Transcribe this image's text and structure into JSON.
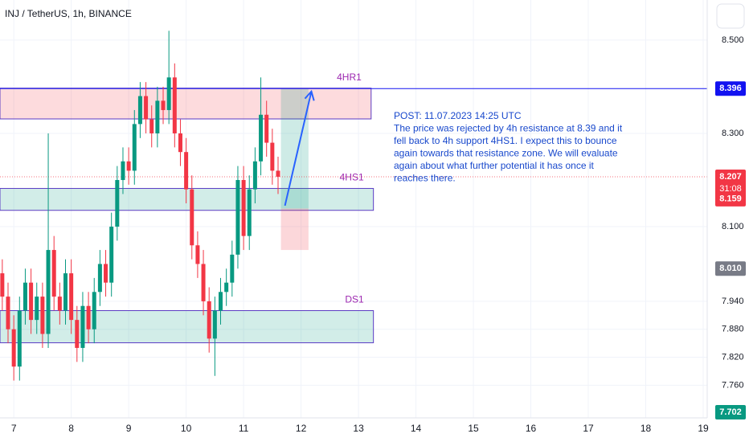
{
  "chart_data": {
    "type": "candlestick",
    "title": "INJ / TetherUS, 1h, BINANCE",
    "x": [
      6.8,
      6.9,
      7.0,
      7.1,
      7.2,
      7.3,
      7.4,
      7.5,
      7.6,
      7.7,
      7.8,
      7.9,
      8.0,
      8.1,
      8.2,
      8.3,
      8.4,
      8.5,
      8.6,
      8.7,
      8.8,
      8.9,
      9.0,
      9.1,
      9.2,
      9.3,
      9.4,
      9.5,
      9.6,
      9.7,
      9.8,
      9.9,
      10.0,
      10.1,
      10.2,
      10.3,
      10.4,
      10.5,
      10.6,
      10.7,
      10.8,
      10.9,
      11.0,
      11.1,
      11.2,
      11.3,
      11.4,
      11.5,
      11.6
    ],
    "open": [
      8.0,
      7.95,
      7.88,
      7.8,
      7.92,
      7.98,
      7.9,
      7.95,
      7.87,
      8.05,
      7.95,
      7.92,
      8.0,
      7.9,
      7.84,
      7.93,
      7.88,
      7.96,
      8.02,
      7.98,
      8.1,
      8.2,
      8.24,
      8.22,
      8.32,
      8.38,
      8.33,
      8.3,
      8.37,
      8.35,
      8.42,
      8.3,
      8.26,
      8.18,
      8.06,
      8.02,
      7.94,
      7.86,
      7.92,
      7.96,
      7.98,
      8.04,
      8.2,
      8.08,
      8.18,
      8.24,
      8.34,
      8.28,
      8.22
    ],
    "high": [
      8.03,
      7.98,
      7.91,
      7.95,
      8.01,
      8.01,
      7.98,
      7.98,
      8.3,
      8.08,
      7.98,
      8.03,
      8.03,
      7.93,
      7.96,
      7.96,
      7.99,
      8.05,
      8.05,
      8.13,
      8.23,
      8.27,
      8.27,
      8.35,
      8.41,
      8.41,
      8.36,
      8.4,
      8.4,
      8.52,
      8.45,
      8.33,
      8.29,
      8.21,
      8.09,
      8.05,
      7.97,
      7.95,
      7.99,
      8.01,
      8.07,
      8.23,
      8.23,
      8.21,
      8.27,
      8.42,
      8.37,
      8.31,
      8.25
    ],
    "low": [
      7.92,
      7.85,
      7.77,
      7.77,
      7.89,
      7.87,
      7.87,
      7.84,
      7.84,
      7.92,
      7.89,
      7.89,
      7.87,
      7.81,
      7.81,
      7.85,
      7.85,
      7.93,
      7.95,
      7.95,
      8.07,
      8.17,
      8.19,
      8.19,
      8.29,
      8.3,
      8.27,
      8.27,
      8.32,
      8.32,
      8.27,
      8.23,
      8.15,
      8.03,
      7.99,
      7.91,
      7.83,
      7.78,
      7.89,
      7.93,
      7.95,
      8.01,
      8.05,
      8.05,
      8.15,
      8.21,
      8.25,
      8.19,
      8.17
    ],
    "close": [
      7.95,
      7.88,
      7.8,
      7.92,
      7.98,
      7.9,
      7.95,
      7.87,
      8.05,
      7.95,
      7.92,
      8.0,
      7.9,
      7.84,
      7.93,
      7.88,
      7.96,
      8.02,
      7.98,
      8.1,
      8.2,
      8.24,
      8.22,
      8.32,
      8.38,
      8.33,
      8.3,
      8.37,
      8.35,
      8.42,
      8.3,
      8.26,
      8.18,
      8.06,
      8.02,
      7.94,
      7.86,
      7.92,
      7.96,
      7.98,
      8.04,
      8.2,
      8.08,
      8.18,
      8.24,
      8.34,
      8.28,
      8.22,
      8.207
    ],
    "up_color": "#089981",
    "down_color": "#f23645",
    "xlim": [
      6.76,
      19.07
    ],
    "xticks": [
      7,
      8,
      9,
      10,
      11,
      12,
      13,
      14,
      15,
      16,
      17,
      18,
      19
    ],
    "ylim": [
      7.69,
      8.586
    ],
    "yticks": [
      {
        "value": 8.5,
        "label": "8.500"
      },
      {
        "value": 8.3,
        "label": "8.300"
      },
      {
        "value": 8.1,
        "label": "8.100"
      },
      {
        "value": 7.94,
        "label": "7.940"
      },
      {
        "value": 7.88,
        "label": "7.880"
      },
      {
        "value": 7.82,
        "label": "7.820"
      },
      {
        "value": 7.76,
        "label": "7.760"
      }
    ],
    "grid": true,
    "zones": [
      {
        "name": "4HR1",
        "from": 6.76,
        "to": 13.22,
        "top": 8.397,
        "bottom": 8.331,
        "color": "#f23645"
      },
      {
        "name": "4HS1",
        "from": 6.76,
        "to": 13.26,
        "top": 8.182,
        "bottom": 8.135,
        "color": "#089981"
      },
      {
        "name": "DS1",
        "from": 6.76,
        "to": 13.26,
        "top": 7.92,
        "bottom": 7.851,
        "color": "#089981"
      }
    ],
    "resistance_line": 8.396,
    "last_price_line": 8.207,
    "position": {
      "from": 11.65,
      "to": 12.13,
      "target": 8.396,
      "entry": 8.139,
      "stop": 8.05
    },
    "arrow": {
      "x": [
        11.72,
        12.18
      ],
      "y": [
        8.145,
        8.39
      ]
    },
    "annotation": [
      "POST: 11.07.2023 14:25 UTC",
      "The price was rejected by 4h resistance at 8.39 and it",
      "fell back to 4h support 4HS1. I expect this to bounce",
      "again towards that resistance zone. We will evaluate",
      "again about what further potential it has once it",
      "reaches there."
    ],
    "price_labels": [
      {
        "value": 8.396,
        "label": "8.396",
        "color": "#1212f0"
      },
      {
        "value": 8.207,
        "label": "8.207",
        "color": "#f23645"
      },
      {
        "value": 8.159,
        "label": "8.159",
        "color": "#f23645"
      },
      {
        "value": 8.01,
        "label": "8.010",
        "color": "#787b86"
      },
      {
        "value": 7.702,
        "label": "7.702",
        "color": "#089981"
      }
    ],
    "countdown": "31:08"
  }
}
